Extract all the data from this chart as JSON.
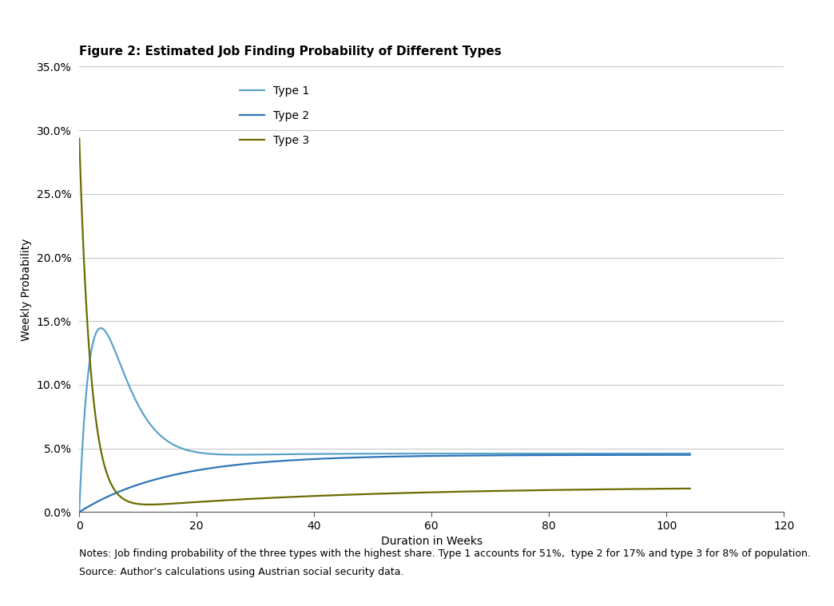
{
  "title": "Figure 2: Estimated Job Finding Probability of Different Types",
  "xlabel": "Duration in Weeks",
  "ylabel": "Weekly Probability",
  "xlim": [
    0,
    120
  ],
  "ylim": [
    0,
    0.35
  ],
  "yticks": [
    0.0,
    0.05,
    0.1,
    0.15,
    0.2,
    0.25,
    0.3,
    0.35
  ],
  "xticks": [
    0,
    20,
    40,
    60,
    80,
    100,
    120
  ],
  "note_line1": "Notes: Job finding probability of the three types with the highest share. Type 1 accounts for 51%,  type 2 for 17% and type 3 for 8% of population.",
  "note_line2": "Source: Author’s calculations using Austrian social security data.",
  "type1_color": "#5BA3C9",
  "type2_color": "#2E75B6",
  "type3_color": "#6B6B00",
  "background_color": "#FFFFFF",
  "plot_bg_color": "#FFFFFF",
  "grid_color": "#C8C8C8",
  "legend_labels": [
    "Type 1",
    "Type 2",
    "Type 3"
  ],
  "title_fontsize": 11,
  "axis_fontsize": 10,
  "tick_fontsize": 10,
  "legend_fontsize": 10,
  "note_fontsize": 9
}
